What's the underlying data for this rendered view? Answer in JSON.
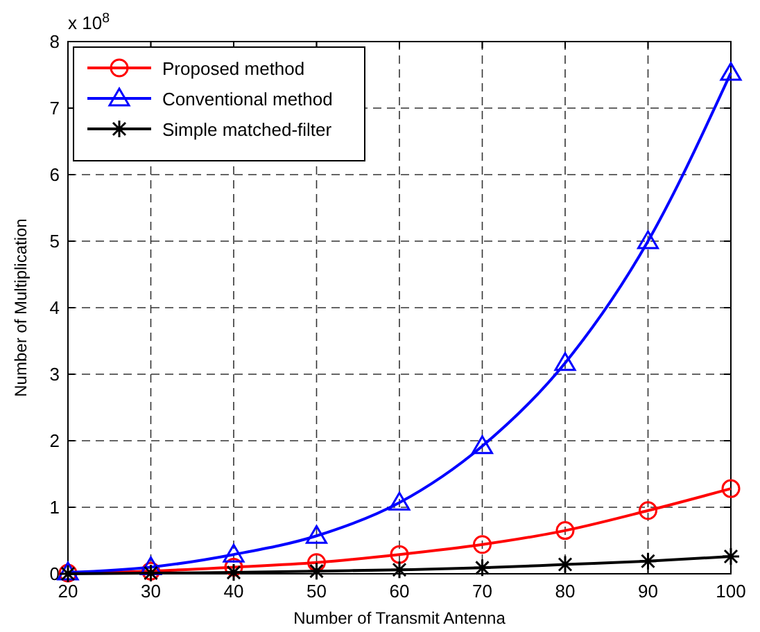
{
  "chart_data": {
    "type": "line",
    "xlabel": "Number of Transmit Antenna",
    "ylabel": "Number of Multiplication",
    "annotations": [
      "x 10$^{8}$"
    ],
    "x": [
      20,
      30,
      40,
      50,
      60,
      70,
      80,
      90,
      100
    ],
    "series": [
      {
        "name": "Proposed method",
        "color": "#ff0000",
        "marker": "circle",
        "values": [
          0.01,
          0.04,
          0.1,
          0.17,
          0.29,
          0.44,
          0.65,
          0.95,
          1.28
        ]
      },
      {
        "name": "Conventional method",
        "color": "#0000ff",
        "marker": "triangle",
        "values": [
          0.02,
          0.1,
          0.29,
          0.57,
          1.07,
          1.92,
          3.17,
          5.0,
          7.53
        ]
      },
      {
        "name": "Simple matched-filter",
        "color": "#000000",
        "marker": "cross",
        "values": [
          0.0,
          0.01,
          0.02,
          0.04,
          0.06,
          0.09,
          0.14,
          0.19,
          0.26
        ]
      }
    ],
    "xlim": [
      20,
      100
    ],
    "xticks": [
      20,
      30,
      40,
      50,
      60,
      70,
      80,
      90,
      100
    ],
    "ylim": [
      0,
      8
    ],
    "yticks": [
      0,
      1,
      2,
      3,
      4,
      5,
      6,
      7,
      8
    ],
    "grid": true,
    "legend": "top left",
    "line_style": "solid"
  }
}
